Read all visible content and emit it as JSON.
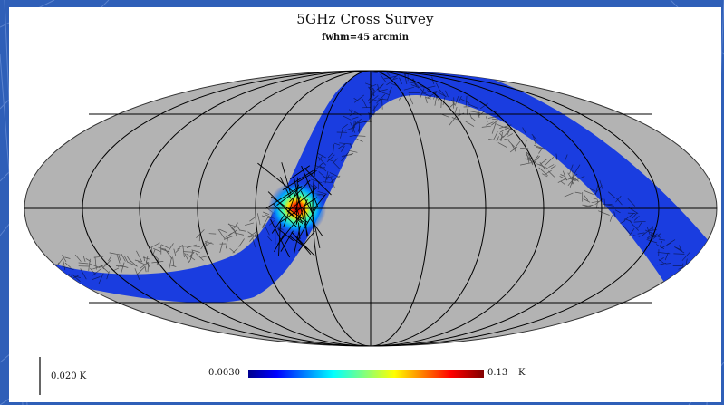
{
  "chart_data": {
    "type": "heatmap",
    "projection": "mollweide",
    "title": "5GHz Cross Survey",
    "subtitle": "fwhm=45 arcmin",
    "graticule": true,
    "colorbar": {
      "min_label": "0.0030",
      "max_label": "0.13",
      "unit": "K",
      "colormap": "jet",
      "min": 0.003,
      "max": 0.13
    },
    "vector_scale": {
      "label": "0.020 K",
      "value": 0.02,
      "unit": "K"
    },
    "background_color": "#b3b3b3",
    "band_color": "#1a3de0",
    "hotspot_color": "#d40000"
  }
}
